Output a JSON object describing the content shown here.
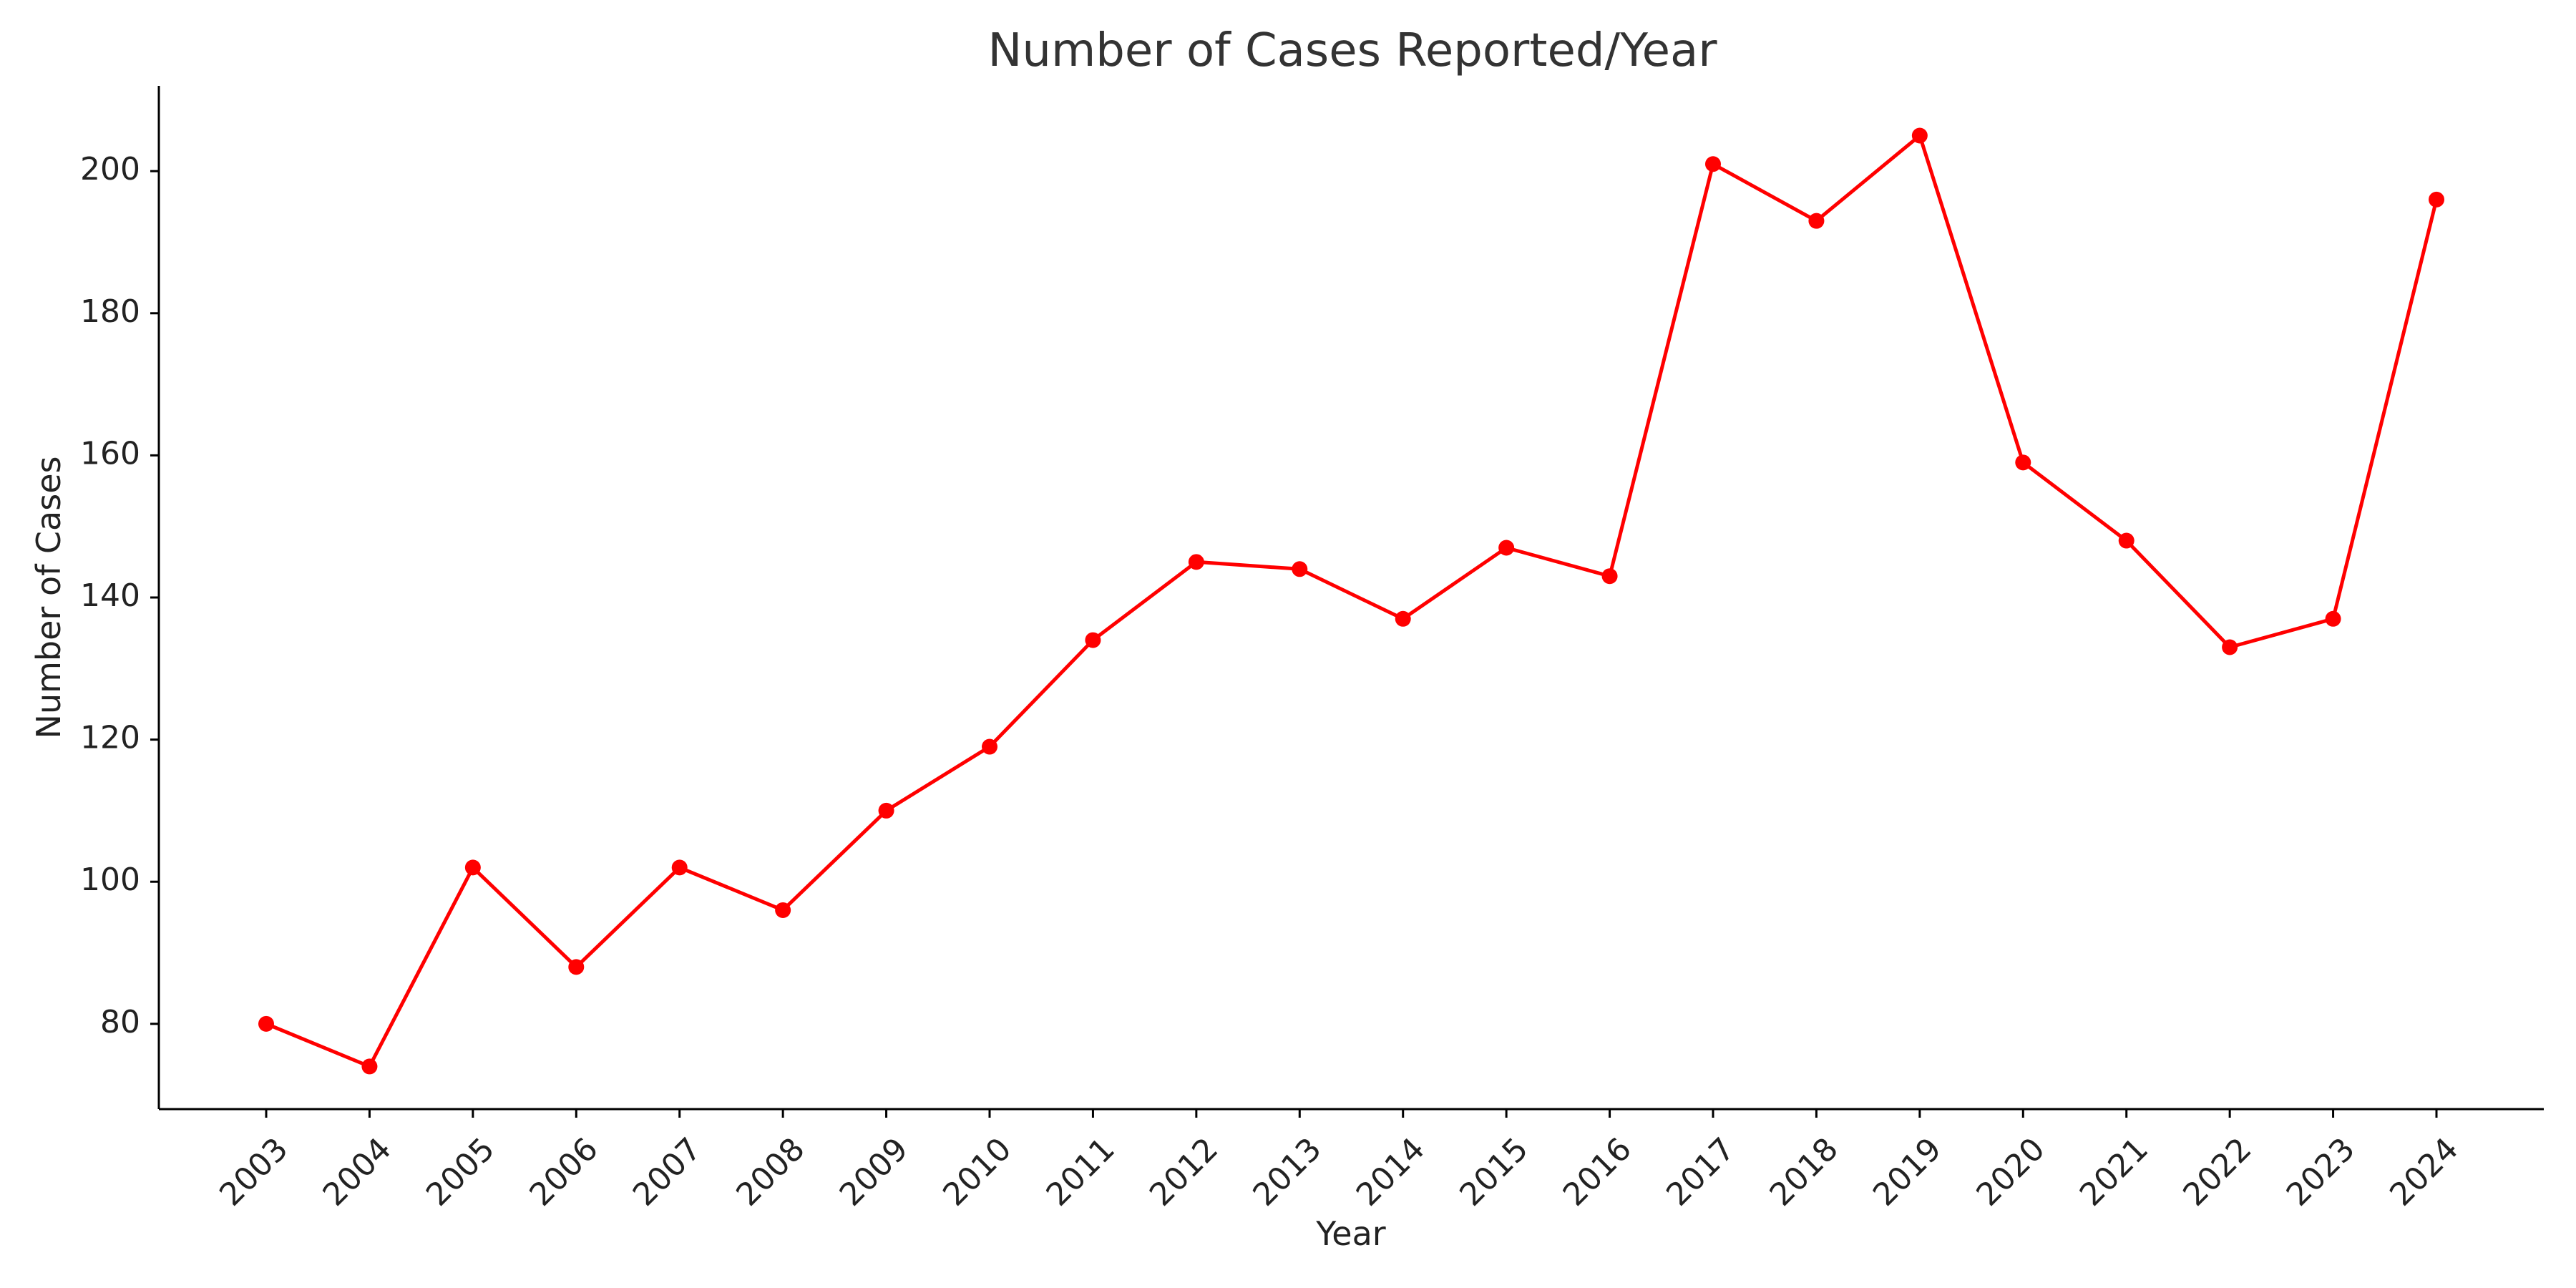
{
  "chart_data": {
    "type": "line",
    "title": "Number of Cases Reported/Year",
    "xlabel": "Year",
    "ylabel": "Number of Cases",
    "x": [
      "2003",
      "2004",
      "2005",
      "2006",
      "2007",
      "2008",
      "2009",
      "2010",
      "2011",
      "2012",
      "2013",
      "2014",
      "2015",
      "2016",
      "2017",
      "2018",
      "2019",
      "2020",
      "2021",
      "2022",
      "2023",
      "2024"
    ],
    "series": [
      {
        "values": [
          80,
          74,
          102,
          88,
          102,
          96,
          110,
          119,
          134,
          145,
          144,
          137,
          147,
          143,
          201,
          193,
          205,
          159,
          148,
          133,
          137,
          196
        ]
      }
    ],
    "yticks": [
      80,
      100,
      120,
      140,
      160,
      180,
      200
    ],
    "ylim": [
      68,
      212
    ],
    "grid": false,
    "legend": "none",
    "color": "#ff0000"
  }
}
